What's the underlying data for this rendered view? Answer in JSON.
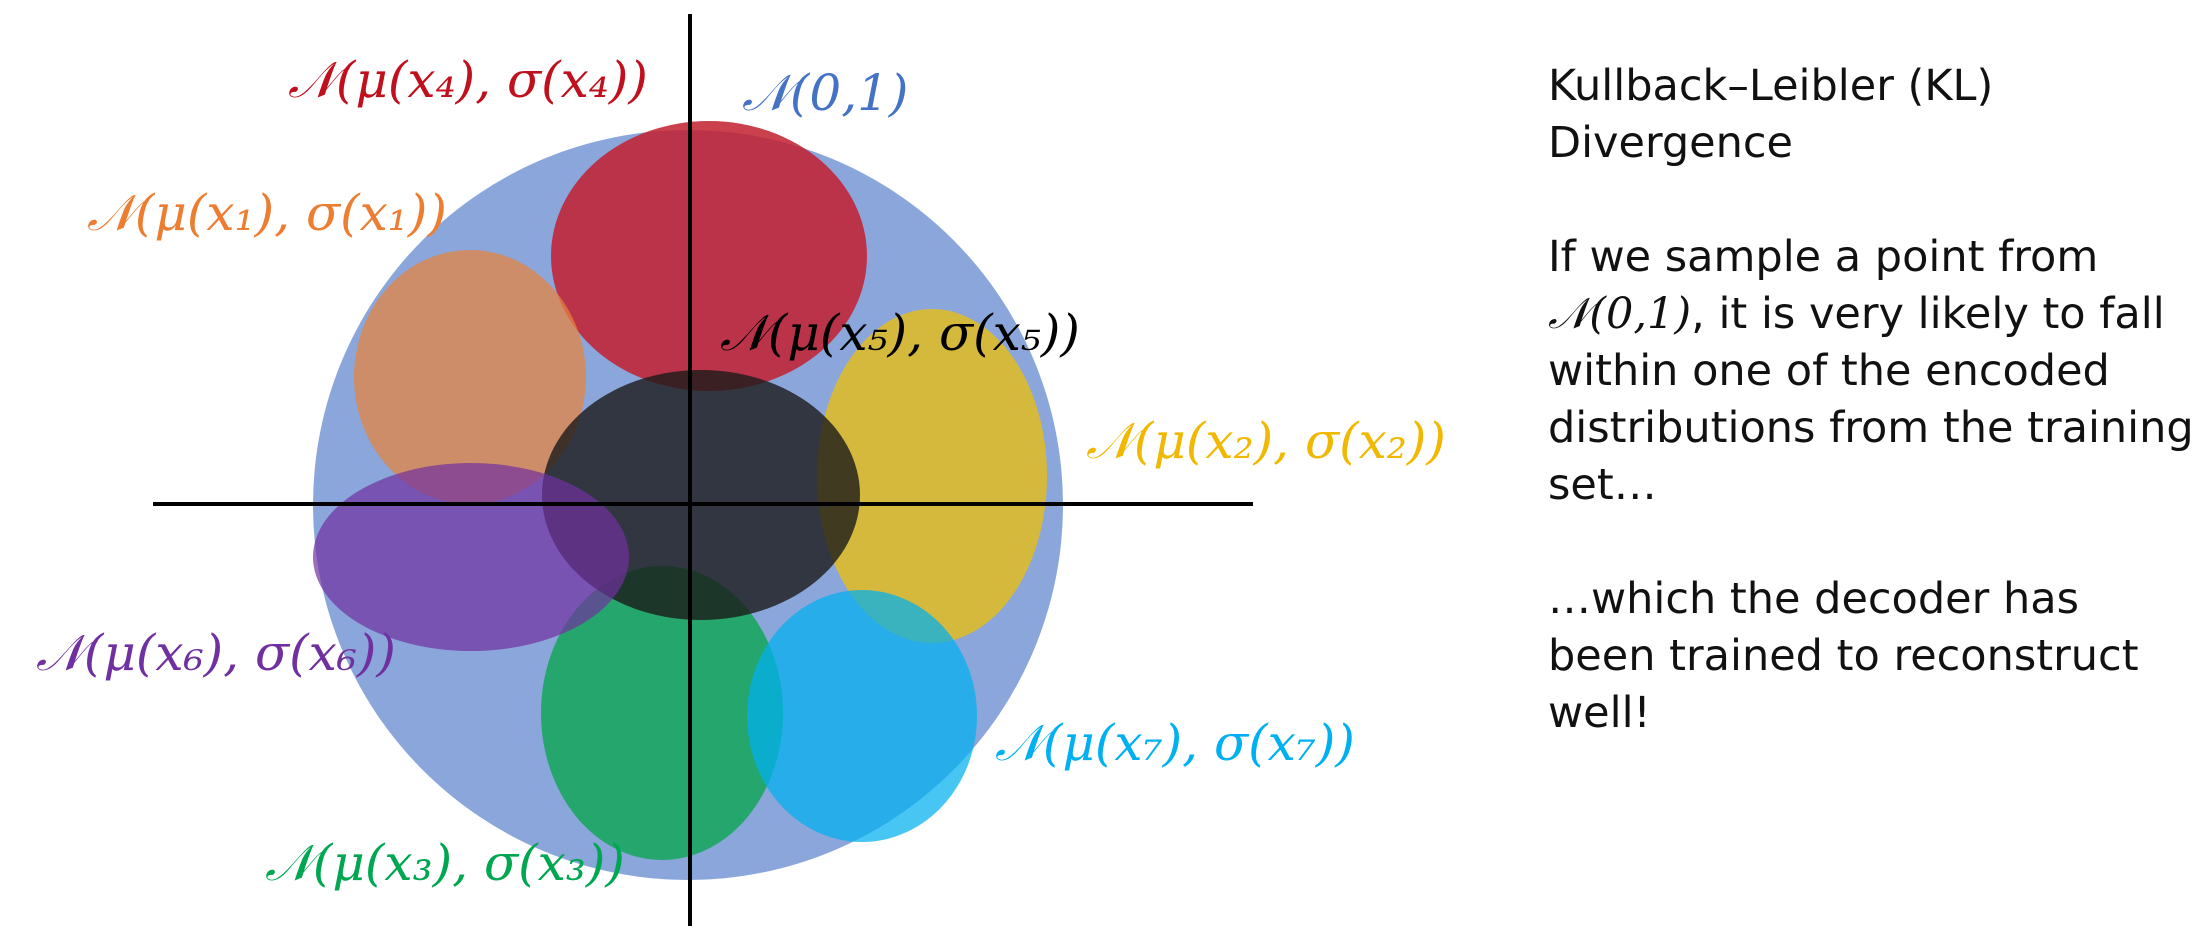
{
  "diagram": {
    "colors": {
      "prior": "#8aa6db",
      "x1": "#e9843d",
      "x2": "#f2c000",
      "x3": "#0aa650",
      "x4": "#c21f2e",
      "x5": "#1a1a1a",
      "x6": "#7030a0",
      "x7": "#00b0f0"
    },
    "labels": {
      "prior": "𝒩(0,1)",
      "x1": "𝒩(μ(x₁), σ(x₁))",
      "x2": "𝒩(μ(x₂), σ(x₂))",
      "x3": "𝒩(μ(x₃), σ(x₃))",
      "x4": "𝒩(μ(x₄), σ(x₄))",
      "x5": "𝒩(μ(x₅), σ(x₅))",
      "x6": "𝒩(μ(x₆), σ(x₆))",
      "x7": "𝒩(μ(x₇), σ(x₇))"
    }
  },
  "panel": {
    "title": "Kullback–Leibler (KL) Divergence",
    "para1_before": "If we sample a point from ",
    "para1_math": "𝒩(0,1)",
    "para1_after": ", it is very likely to fall within one of the encoded distributions from the training set…",
    "para2": "…which the decoder has been trained to reconstruct well!"
  }
}
